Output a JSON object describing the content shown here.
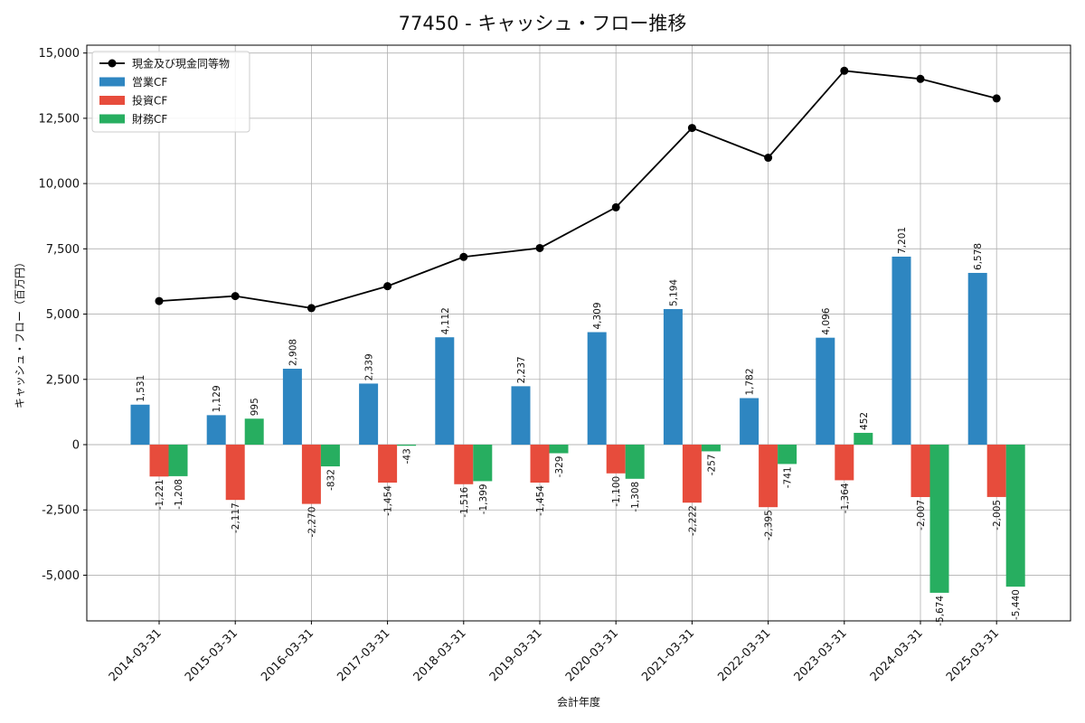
{
  "chart_data": {
    "type": "bar",
    "title": "77450 - キャッシュ・フロー推移",
    "xlabel": "会計年度",
    "ylabel": "キャッシュ・フロー（百万円）",
    "categories": [
      "2014-03-31",
      "2015-03-31",
      "2016-03-31",
      "2017-03-31",
      "2018-03-31",
      "2019-03-31",
      "2020-03-31",
      "2021-03-31",
      "2022-03-31",
      "2023-03-31",
      "2024-03-31",
      "2025-03-31"
    ],
    "ylim": [
      -6750,
      15300
    ],
    "yticks": [
      -5000,
      -2500,
      0,
      2500,
      5000,
      7500,
      10000,
      12500,
      15000
    ],
    "ytick_labels": [
      "-5,000",
      "-2,500",
      "0",
      "2,500",
      "5,000",
      "7,500",
      "10,000",
      "12,500",
      "15,000"
    ],
    "grid": true,
    "legend_position": "top-left",
    "series": [
      {
        "name": "営業CF",
        "kind": "bar",
        "color": "#2e86c1",
        "values": [
          1531,
          1129,
          2908,
          2339,
          4112,
          2237,
          4309,
          5194,
          1782,
          4096,
          7201,
          6578
        ],
        "labels": [
          "1,531",
          "1,129",
          "2,908",
          "2,339",
          "4,112",
          "2,237",
          "4,309",
          "5,194",
          "1,782",
          "4,096",
          "7,201",
          "6,578"
        ]
      },
      {
        "name": "投資CF",
        "kind": "bar",
        "color": "#e74c3c",
        "values": [
          -1221,
          -2117,
          -2270,
          -1454,
          -1516,
          -1454,
          -1100,
          -2222,
          -2395,
          -1364,
          -2007,
          -2005
        ],
        "labels": [
          "-1,221",
          "-2,117",
          "-2,270",
          "-1,454",
          "-1,516",
          "-1,454",
          "-1,100",
          "-2,222",
          "-2,395",
          "-1,364",
          "-2,007",
          "-2,005"
        ]
      },
      {
        "name": "財務CF",
        "kind": "bar",
        "color": "#27ae60",
        "values": [
          -1208,
          995,
          -832,
          -43,
          -1399,
          -329,
          -1308,
          -257,
          -741,
          452,
          -5674,
          -5440
        ],
        "labels": [
          "-1,208",
          "995",
          "-832",
          "-43",
          "-1,399",
          "-329",
          "-1,308",
          "-257",
          "-741",
          "452",
          "-5,674",
          "-5,440"
        ]
      },
      {
        "name": "現金及び現金同等物",
        "kind": "line",
        "color": "#000000",
        "values": [
          5500,
          5690,
          5230,
          6070,
          7190,
          7530,
          9090,
          12130,
          10990,
          14320,
          14010,
          13260
        ]
      }
    ]
  }
}
